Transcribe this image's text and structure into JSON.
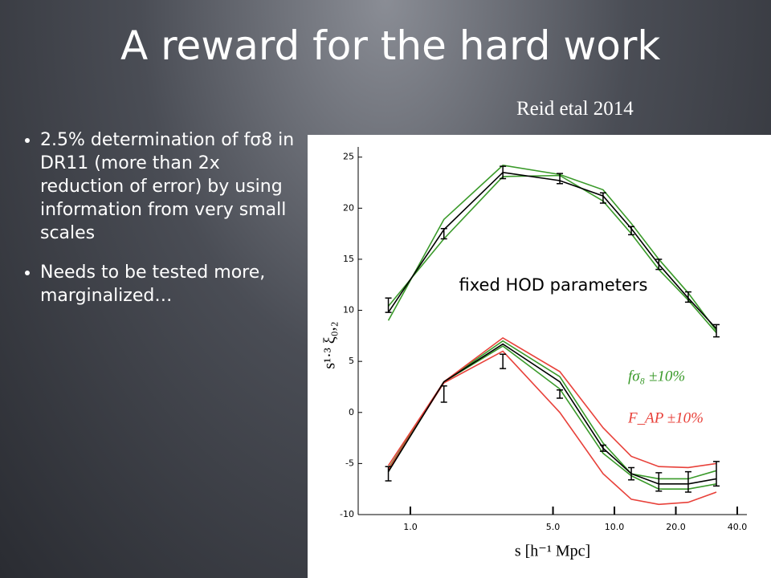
{
  "slide": {
    "title": "A reward for the hard work",
    "citation": "Reid etal 2014",
    "bullets": [
      "2.5% determination of fσ8 in DR11 (more than 2x reduction of error) by using information from very small scales",
      "Needs to be tested more, marginalized…"
    ]
  },
  "chart_data": {
    "type": "line",
    "annotation": "fixed HOD parameters",
    "xlabel": "s [h⁻¹ Mpc]",
    "ylabel": "s¹·³ ξ₀,₂",
    "xscale": "log",
    "xlim": [
      0.555,
      44.6
    ],
    "ylim": [
      -10,
      26
    ],
    "xticks": [
      {
        "value": 1,
        "label": "1.0"
      },
      {
        "value": 5,
        "label": "5.0"
      },
      {
        "value": 10,
        "label": "10.0"
      },
      {
        "value": 20,
        "label": "20.0"
      },
      {
        "value": 40,
        "label": "40.0"
      }
    ],
    "yticks": [
      -10,
      -5,
      0,
      5,
      10,
      15,
      20,
      25
    ],
    "x": [
      0.78,
      1.46,
      2.84,
      5.4,
      8.8,
      12.1,
      16.5,
      23,
      31.6
    ],
    "series": [
      {
        "color": "#3a9a2a",
        "values": [
          9.0,
          18.9,
          24.2,
          23.3,
          21.8,
          18.5,
          15.0,
          11.7,
          8.0
        ]
      },
      {
        "color": "#3a9a2a",
        "values": [
          10.4,
          17.0,
          23.1,
          23.2,
          20.7,
          17.5,
          14.0,
          11.0,
          7.8
        ]
      },
      {
        "color": "#000000",
        "values": [
          9.8,
          17.9,
          23.5,
          22.7,
          21.2,
          18.0,
          14.5,
          11.2,
          8.2
        ]
      },
      {
        "color": "#000000",
        "style": "errorbar",
        "values": [
          10.5,
          17.5,
          23.5,
          22.9,
          21.0,
          17.8,
          14.5,
          11.3,
          8.0
        ],
        "errors": [
          0.7,
          0.5,
          0.6,
          0.5,
          0.5,
          0.4,
          0.5,
          0.5,
          0.6
        ]
      },
      {
        "name": "fσ₈ ±10%",
        "color": "#3a9a2a",
        "values": [
          -5.5,
          3.0,
          7.0,
          3.5,
          -3.0,
          -6.0,
          -6.5,
          -6.5,
          -5.7
        ]
      },
      {
        "color": "#3a9a2a",
        "values": [
          -5.8,
          3.0,
          6.5,
          2.3,
          -4.0,
          -6.2,
          -7.5,
          -7.5,
          -7.0
        ]
      },
      {
        "name": "F_AP ±10%",
        "color": "#e8413a",
        "values": [
          -5.2,
          3.0,
          7.3,
          4.0,
          -1.5,
          -4.3,
          -5.3,
          -5.4,
          -5.0
        ]
      },
      {
        "color": "#e8413a",
        "values": [
          -5.6,
          2.9,
          6.0,
          0.0,
          -6.0,
          -8.5,
          -9.0,
          -8.8,
          -7.8
        ]
      },
      {
        "color": "#000000",
        "values": [
          -5.8,
          3.0,
          6.7,
          3.0,
          -3.5,
          -6.0,
          -7.0,
          -7.0,
          -6.5
        ]
      },
      {
        "color": "#000000",
        "style": "errorbar",
        "values": [
          -6.0,
          1.8,
          5.0,
          1.8,
          -3.5,
          -6.0,
          -6.8,
          -6.8,
          -6.0
        ],
        "errors": [
          0.7,
          0.8,
          0.7,
          0.4,
          0.3,
          0.6,
          0.9,
          1.0,
          1.2
        ]
      }
    ]
  }
}
